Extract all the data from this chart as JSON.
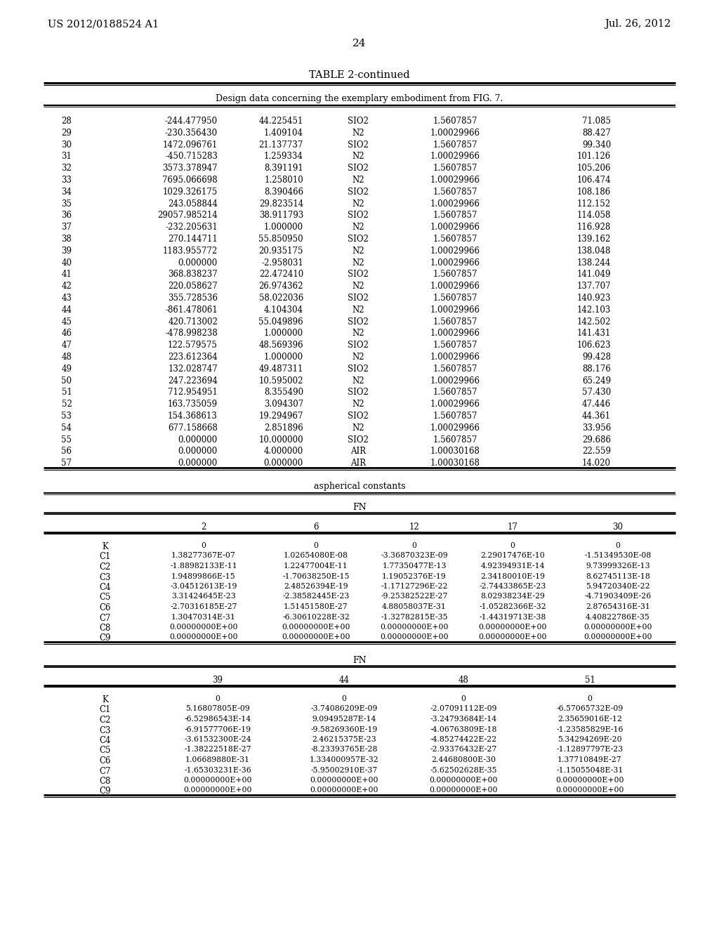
{
  "header_left": "US 2012/0188524 A1",
  "header_right": "Jul. 26, 2012",
  "page_number": "24",
  "table_title": "TABLE 2-continued",
  "table_subtitle": "Design data concerning the exemplary embodiment from FIG. 7.",
  "main_table_rows": [
    [
      "28",
      "-244.477950",
      "44.225451",
      "SIO2",
      "1.5607857",
      "71.085"
    ],
    [
      "29",
      "-230.356430",
      "1.409104",
      "N2",
      "1.00029966",
      "88.427"
    ],
    [
      "30",
      "1472.096761",
      "21.137737",
      "SIO2",
      "1.5607857",
      "99.340"
    ],
    [
      "31",
      "-450.715283",
      "1.259334",
      "N2",
      "1.00029966",
      "101.126"
    ],
    [
      "32",
      "3573.378947",
      "8.391191",
      "SIO2",
      "1.5607857",
      "105.206"
    ],
    [
      "33",
      "7695.066698",
      "1.258010",
      "N2",
      "1.00029966",
      "106.474"
    ],
    [
      "34",
      "1029.326175",
      "8.390466",
      "SIO2",
      "1.5607857",
      "108.186"
    ],
    [
      "35",
      "243.058844",
      "29.823514",
      "N2",
      "1.00029966",
      "112.152"
    ],
    [
      "36",
      "29057.985214",
      "38.911793",
      "SIO2",
      "1.5607857",
      "114.058"
    ],
    [
      "37",
      "-232.205631",
      "1.000000",
      "N2",
      "1.00029966",
      "116.928"
    ],
    [
      "38",
      "270.144711",
      "55.850950",
      "SIO2",
      "1.5607857",
      "139.162"
    ],
    [
      "39",
      "1183.955772",
      "20.935175",
      "N2",
      "1.00029966",
      "138.048"
    ],
    [
      "40",
      "0.000000",
      "-2.958031",
      "N2",
      "1.00029966",
      "138.244"
    ],
    [
      "41",
      "368.838237",
      "22.472410",
      "SIO2",
      "1.5607857",
      "141.049"
    ],
    [
      "42",
      "220.058627",
      "26.974362",
      "N2",
      "1.00029966",
      "137.707"
    ],
    [
      "43",
      "355.728536",
      "58.022036",
      "SIO2",
      "1.5607857",
      "140.923"
    ],
    [
      "44",
      "-861.478061",
      "4.104304",
      "N2",
      "1.00029966",
      "142.103"
    ],
    [
      "45",
      "420.713002",
      "55.049896",
      "SIO2",
      "1.5607857",
      "142.502"
    ],
    [
      "46",
      "-478.998238",
      "1.000000",
      "N2",
      "1.00029966",
      "141.431"
    ],
    [
      "47",
      "122.579575",
      "48.569396",
      "SIO2",
      "1.5607857",
      "106.623"
    ],
    [
      "48",
      "223.612364",
      "1.000000",
      "N2",
      "1.00029966",
      "99.428"
    ],
    [
      "49",
      "132.028747",
      "49.487311",
      "SIO2",
      "1.5607857",
      "88.176"
    ],
    [
      "50",
      "247.223694",
      "10.595002",
      "N2",
      "1.00029966",
      "65.249"
    ],
    [
      "51",
      "712.954951",
      "8.355490",
      "SIO2",
      "1.5607857",
      "57.430"
    ],
    [
      "52",
      "163.735059",
      "3.094307",
      "N2",
      "1.00029966",
      "47.446"
    ],
    [
      "53",
      "154.368613",
      "19.294967",
      "SIO2",
      "1.5607857",
      "44.361"
    ],
    [
      "54",
      "677.158668",
      "2.851896",
      "N2",
      "1.00029966",
      "33.956"
    ],
    [
      "55",
      "0.000000",
      "10.000000",
      "SIO2",
      "1.5607857",
      "29.686"
    ],
    [
      "56",
      "0.000000",
      "4.000000",
      "AIR",
      "1.00030168",
      "22.559"
    ],
    [
      "57",
      "0.000000",
      "0.000000",
      "AIR",
      "1.00030168",
      "14.020"
    ]
  ],
  "asph_section_label": "aspherical constants",
  "fn_label_1": "FN",
  "fn_cols_1": [
    "2",
    "6",
    "12",
    "17",
    "30"
  ],
  "asph_table1_rows": [
    [
      "K",
      "0",
      "0",
      "0",
      "0",
      "0"
    ],
    [
      "C1",
      "1.38277367E-07",
      "1.02654080E-08",
      "-3.36870323E-09",
      "2.29017476E-10",
      "-1.51349530E-08"
    ],
    [
      "C2",
      "-1.88982133E-11",
      "1.22477004E-11",
      "1.77350477E-13",
      "4.92394931E-14",
      "9.73999326E-13"
    ],
    [
      "C3",
      "1.94899866E-15",
      "-1.70638250E-15",
      "1.19052376E-19",
      "2.34180010E-19",
      "8.62745113E-18"
    ],
    [
      "C4",
      "-3.04512613E-19",
      "2.48526394E-19",
      "-1.17127296E-22",
      "-2.74433865E-23",
      "5.94720340E-22"
    ],
    [
      "C5",
      "3.31424645E-23",
      "-2.38582445E-23",
      "-9.25382522E-27",
      "8.02938234E-29",
      "-4.71903409E-26"
    ],
    [
      "C6",
      "-2.70316185E-27",
      "1.51451580E-27",
      "4.88058037E-31",
      "-1.05282366E-32",
      "2.87654316E-31"
    ],
    [
      "C7",
      "1.30470314E-31",
      "-6.30610228E-32",
      "-1.32782815E-35",
      "-1.44319713E-38",
      "4.40822786E-35"
    ],
    [
      "C8",
      "0.00000000E+00",
      "0.00000000E+00",
      "0.00000000E+00",
      "0.00000000E+00",
      "0.00000000E+00"
    ],
    [
      "C9",
      "0.00000000E+00",
      "0.00000000E+00",
      "0.00000000E+00",
      "0.00000000E+00",
      "0.00000000E+00"
    ]
  ],
  "fn_label_2": "FN",
  "fn_cols_2": [
    "39",
    "44",
    "48",
    "51"
  ],
  "asph_table2_rows": [
    [
      "K",
      "0",
      "0",
      "0",
      "0"
    ],
    [
      "C1",
      "5.16807805E-09",
      "-3.74086209E-09",
      "-2.07091112E-09",
      "-6.57065732E-09"
    ],
    [
      "C2",
      "-6.52986543E-14",
      "9.09495287E-14",
      "-3.24793684E-14",
      "2.35659016E-12"
    ],
    [
      "C3",
      "-6.91577706E-19",
      "-9.58269360E-19",
      "-4.06763809E-18",
      "-1.23585829E-16"
    ],
    [
      "C4",
      "-3.61532300E-24",
      "2.46215375E-23",
      "-4.85274422E-22",
      "5.34294269E-20"
    ],
    [
      "C5",
      "-1.38222518E-27",
      "-8.23393765E-28",
      "-2.93376432E-27",
      "-1.12897797E-23"
    ],
    [
      "C6",
      "1.06689880E-31",
      "1.334000957E-32",
      "2.44680800E-30",
      "1.37710849E-27"
    ],
    [
      "C7",
      "-1.65303231E-36",
      "-5.95002910E-37",
      "-5.62502628E-35",
      "-1.15055048E-31"
    ],
    [
      "C8",
      "0.00000000E+00",
      "0.00000000E+00",
      "0.00000000E+00",
      "0.00000000E+00"
    ],
    [
      "C9",
      "0.00000000E+00",
      "0.00000000E+00",
      "0.00000000E+00",
      "0.00000000E+00"
    ]
  ]
}
